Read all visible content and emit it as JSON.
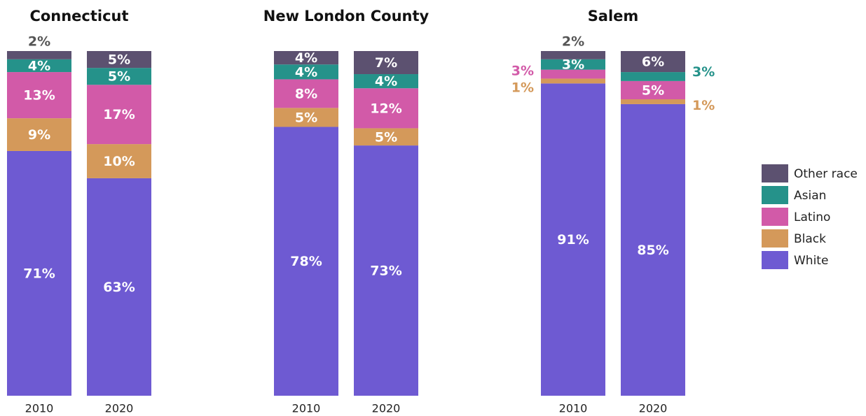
{
  "chart_data": [
    {
      "type": "bar",
      "stacked": true,
      "title": "Connecticut",
      "categories": [
        "2010",
        "2020"
      ],
      "ylim": [
        0,
        100
      ],
      "series": [
        {
          "name": "White",
          "color": "#6e5ad2",
          "values": [
            71.0,
            63.1
          ],
          "value_labels": [
            "71%",
            "63%"
          ]
        },
        {
          "name": "Black",
          "color": "#d4995a",
          "values": [
            9.5,
            9.9
          ],
          "value_labels": [
            "9%",
            "10%"
          ]
        },
        {
          "name": "Latino",
          "color": "#d25aa8",
          "values": [
            13.4,
            17.2
          ],
          "value_labels": [
            "13%",
            "17%"
          ]
        },
        {
          "name": "Asian",
          "color": "#25928a",
          "values": [
            3.7,
            4.9
          ],
          "value_labels": [
            "4%",
            "5%"
          ]
        },
        {
          "name": "Other race",
          "color": "#5c5170",
          "values": [
            2.4,
            4.9
          ],
          "value_labels": [
            "2%",
            "5%"
          ]
        }
      ]
    },
    {
      "type": "bar",
      "stacked": true,
      "title": "New London County",
      "categories": [
        "2010",
        "2020"
      ],
      "ylim": [
        0,
        100
      ],
      "series": [
        {
          "name": "White",
          "color": "#6e5ad2",
          "values": [
            78.0,
            72.6
          ],
          "value_labels": [
            "78%",
            "73%"
          ]
        },
        {
          "name": "Black",
          "color": "#d4995a",
          "values": [
            5.5,
            5.0
          ],
          "value_labels": [
            "5%",
            "5%"
          ]
        },
        {
          "name": "Latino",
          "color": "#d25aa8",
          "values": [
            8.3,
            11.6
          ],
          "value_labels": [
            "8%",
            "12%"
          ]
        },
        {
          "name": "Asian",
          "color": "#25928a",
          "values": [
            4.3,
            4.1
          ],
          "value_labels": [
            "4%",
            "4%"
          ]
        },
        {
          "name": "Other race",
          "color": "#5c5170",
          "values": [
            3.9,
            6.7
          ],
          "value_labels": [
            "4%",
            "7%"
          ]
        }
      ]
    },
    {
      "type": "bar",
      "stacked": true,
      "title": "Salem",
      "categories": [
        "2010",
        "2020"
      ],
      "ylim": [
        0,
        100
      ],
      "series": [
        {
          "name": "White",
          "color": "#6e5ad2",
          "values": [
            90.6,
            84.6
          ],
          "value_labels": [
            "91%",
            "85%"
          ]
        },
        {
          "name": "Black",
          "color": "#d4995a",
          "values": [
            1.4,
            1.4
          ],
          "value_labels": [
            "1%",
            "1%"
          ]
        },
        {
          "name": "Latino",
          "color": "#d25aa8",
          "values": [
            2.6,
            5.3
          ],
          "value_labels": [
            "3%",
            "5%"
          ]
        },
        {
          "name": "Asian",
          "color": "#25928a",
          "values": [
            3.0,
            2.6
          ],
          "value_labels": [
            "3%",
            "3%"
          ]
        },
        {
          "name": "Other race",
          "color": "#5c5170",
          "values": [
            2.4,
            6.1
          ],
          "value_labels": [
            "2%",
            "6%"
          ]
        }
      ]
    }
  ]
}
